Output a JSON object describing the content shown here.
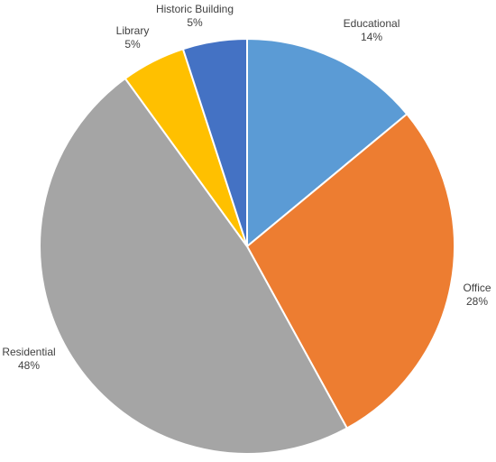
{
  "chart_data": {
    "type": "pie",
    "title": "",
    "start_angle_deg": 0,
    "direction": "clockwise",
    "slices": [
      {
        "label": "Educational",
        "value": 14,
        "value_label": "14%",
        "color": "#5B9BD5"
      },
      {
        "label": "Office",
        "value": 28,
        "value_label": "28%",
        "color": "#ED7D31"
      },
      {
        "label": "Residential",
        "value": 48,
        "value_label": "48%",
        "color": "#A5A5A5"
      },
      {
        "label": "Library",
        "value": 5,
        "value_label": "5%",
        "color": "#FFC000"
      },
      {
        "label": "Historic Building",
        "value": 5,
        "value_label": "5%",
        "color": "#4472C4"
      }
    ]
  }
}
